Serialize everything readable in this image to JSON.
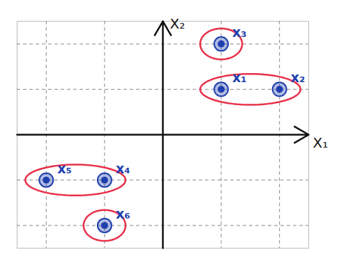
{
  "chart_data": {
    "type": "scatter",
    "x_label": "X₁",
    "y_label": "X₂",
    "labels": [
      "x₁",
      "x₂",
      "x₃",
      "x₄",
      "x₅",
      "x₆"
    ],
    "x": [
      1,
      2,
      1,
      -1,
      -2,
      -1
    ],
    "values": [
      1,
      1,
      2,
      -1,
      -1,
      -2
    ],
    "clusters": [
      [
        0,
        1
      ],
      [
        2
      ],
      [
        3,
        4
      ],
      [
        5
      ]
    ],
    "color": "#1f3fae",
    "marker": "circle",
    "xlim": [
      -2.5,
      2.5
    ],
    "ylim": [
      -2.5,
      2.5
    ],
    "xticks": [
      -2,
      -1,
      0,
      1,
      2
    ],
    "yticks": [
      -2,
      -1,
      0,
      1,
      2
    ],
    "grid": true,
    "tick_labels": false
  }
}
